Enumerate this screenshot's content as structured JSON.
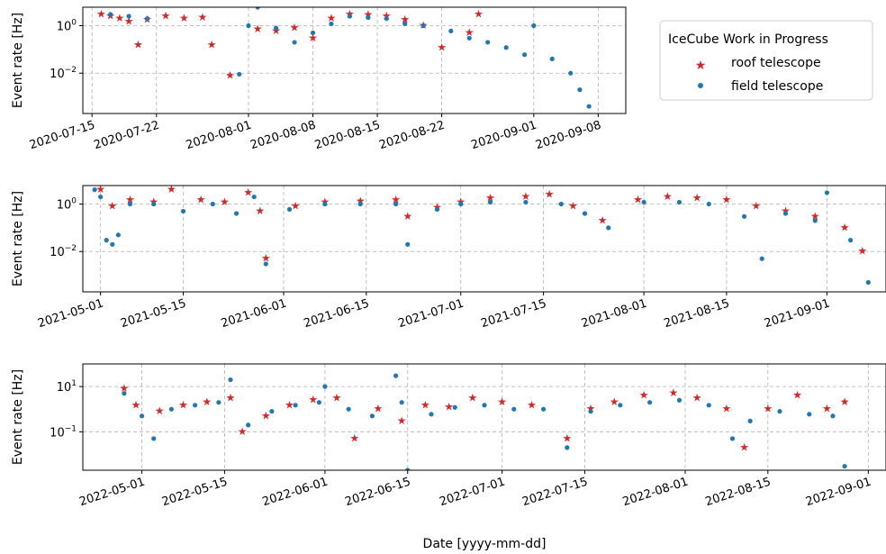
{
  "colors": {
    "roof": "#d62728",
    "field": "#1f77b4",
    "grid": "#b0b0b0"
  },
  "legend": {
    "title": "IceCube Work in Progress",
    "entries": [
      {
        "label": "roof telescope",
        "marker": "star",
        "color": "#d62728"
      },
      {
        "label": "field telescope",
        "marker": "dot",
        "color": "#1f77b4"
      }
    ]
  },
  "xlabel": "Date [yyyy-mm-dd]",
  "chart_data": [
    {
      "type": "scatter",
      "ylabel": "Event rate [Hz]",
      "yscale": "log",
      "ylim": [
        0.0002,
        6
      ],
      "xlim": [
        "2020-07-14",
        "2020-09-11"
      ],
      "yticks": [
        {
          "value": 1,
          "base": "10",
          "exp": "0"
        },
        {
          "value": 0.01,
          "base": "10",
          "exp": "−2"
        }
      ],
      "xticks": [
        "2020-07-15",
        "2020-07-22",
        "2020-08-01",
        "2020-08-08",
        "2020-08-15",
        "2020-08-22",
        "2020-09-01",
        "2020-09-08"
      ],
      "grid": true,
      "series": [
        {
          "name": "roof telescope",
          "marker": "star",
          "color": "#d62728",
          "points": [
            [
              "2020-07-16",
              3
            ],
            [
              "2020-07-17",
              2.5
            ],
            [
              "2020-07-18",
              2
            ],
            [
              "2020-07-19",
              1.5
            ],
            [
              "2020-07-20",
              0.15
            ],
            [
              "2020-07-21",
              1.8
            ],
            [
              "2020-07-23",
              2.5
            ],
            [
              "2020-07-25",
              2
            ],
            [
              "2020-07-27",
              2.2
            ],
            [
              "2020-07-28",
              0.15
            ],
            [
              "2020-07-30",
              0.008
            ],
            [
              "2020-08-02",
              0.7
            ],
            [
              "2020-08-04",
              0.6
            ],
            [
              "2020-08-06",
              0.8
            ],
            [
              "2020-08-08",
              0.3
            ],
            [
              "2020-08-10",
              2
            ],
            [
              "2020-08-12",
              3
            ],
            [
              "2020-08-14",
              2.8
            ],
            [
              "2020-08-16",
              2.5
            ],
            [
              "2020-08-18",
              1.8
            ],
            [
              "2020-08-20",
              1
            ],
            [
              "2020-08-22",
              0.12
            ],
            [
              "2020-08-25",
              0.5
            ],
            [
              "2020-08-26",
              3
            ]
          ]
        },
        {
          "name": "field telescope",
          "marker": "dot",
          "color": "#1f77b4",
          "points": [
            [
              "2020-07-17",
              3
            ],
            [
              "2020-07-19",
              2.5
            ],
            [
              "2020-07-21",
              2
            ],
            [
              "2020-07-31",
              0.009
            ],
            [
              "2020-08-01",
              1
            ],
            [
              "2020-08-02",
              6
            ],
            [
              "2020-08-04",
              0.8
            ],
            [
              "2020-08-06",
              0.2
            ],
            [
              "2020-08-08",
              0.5
            ],
            [
              "2020-08-10",
              1.2
            ],
            [
              "2020-08-12",
              2.5
            ],
            [
              "2020-08-14",
              2.2
            ],
            [
              "2020-08-16",
              2
            ],
            [
              "2020-08-18",
              1.2
            ],
            [
              "2020-08-20",
              1
            ],
            [
              "2020-08-23",
              0.6
            ],
            [
              "2020-08-25",
              0.3
            ],
            [
              "2020-08-27",
              0.2
            ],
            [
              "2020-08-29",
              0.12
            ],
            [
              "2020-08-31",
              0.06
            ],
            [
              "2020-09-01",
              1
            ],
            [
              "2020-09-03",
              0.04
            ],
            [
              "2020-09-05",
              0.01
            ],
            [
              "2020-09-06",
              0.002
            ],
            [
              "2020-09-07",
              0.0004
            ]
          ]
        }
      ]
    },
    {
      "type": "scatter",
      "ylabel": "Event rate [Hz]",
      "yscale": "log",
      "ylim": [
        0.0002,
        6
      ],
      "xlim": [
        "2021-04-28",
        "2021-09-11"
      ],
      "yticks": [
        {
          "value": 1,
          "base": "10",
          "exp": "0"
        },
        {
          "value": 0.01,
          "base": "10",
          "exp": "−2"
        }
      ],
      "xticks": [
        "2021-05-01",
        "2021-05-15",
        "2021-06-01",
        "2021-06-15",
        "2021-07-01",
        "2021-07-15",
        "2021-08-01",
        "2021-08-15",
        "2021-09-01"
      ],
      "grid": true,
      "series": [
        {
          "name": "roof telescope",
          "marker": "star",
          "color": "#d62728",
          "points": [
            [
              "2021-05-01",
              4
            ],
            [
              "2021-05-03",
              0.8
            ],
            [
              "2021-05-06",
              1.5
            ],
            [
              "2021-05-10",
              1.2
            ],
            [
              "2021-05-13",
              4
            ],
            [
              "2021-05-18",
              1.5
            ],
            [
              "2021-05-22",
              1.2
            ],
            [
              "2021-05-26",
              3
            ],
            [
              "2021-05-28",
              0.5
            ],
            [
              "2021-05-29",
              0.005
            ],
            [
              "2021-06-03",
              0.8
            ],
            [
              "2021-06-08",
              1.2
            ],
            [
              "2021-06-14",
              1.3
            ],
            [
              "2021-06-20",
              1.5
            ],
            [
              "2021-06-22",
              0.3
            ],
            [
              "2021-06-27",
              0.7
            ],
            [
              "2021-07-01",
              1.2
            ],
            [
              "2021-07-06",
              1.8
            ],
            [
              "2021-07-12",
              2
            ],
            [
              "2021-07-16",
              2.5
            ],
            [
              "2021-07-20",
              0.8
            ],
            [
              "2021-07-25",
              0.2
            ],
            [
              "2021-07-31",
              1.5
            ],
            [
              "2021-08-05",
              2
            ],
            [
              "2021-08-10",
              1.8
            ],
            [
              "2021-08-15",
              1.5
            ],
            [
              "2021-08-20",
              0.8
            ],
            [
              "2021-08-25",
              0.5
            ],
            [
              "2021-08-30",
              0.3
            ],
            [
              "2021-09-04",
              0.1
            ],
            [
              "2021-09-07",
              0.01
            ]
          ]
        },
        {
          "name": "field telescope",
          "marker": "dot",
          "color": "#1f77b4",
          "points": [
            [
              "2021-04-30",
              4
            ],
            [
              "2021-05-01",
              2
            ],
            [
              "2021-05-02",
              0.03
            ],
            [
              "2021-05-03",
              0.02
            ],
            [
              "2021-05-04",
              0.05
            ],
            [
              "2021-05-06",
              1
            ],
            [
              "2021-05-10",
              1
            ],
            [
              "2021-05-15",
              0.5
            ],
            [
              "2021-05-20",
              1
            ],
            [
              "2021-05-24",
              0.4
            ],
            [
              "2021-05-27",
              2
            ],
            [
              "2021-05-29",
              0.003
            ],
            [
              "2021-06-02",
              0.6
            ],
            [
              "2021-06-08",
              1
            ],
            [
              "2021-06-14",
              1
            ],
            [
              "2021-06-20",
              1
            ],
            [
              "2021-06-22",
              0.02
            ],
            [
              "2021-06-27",
              0.6
            ],
            [
              "2021-07-01",
              1
            ],
            [
              "2021-07-06",
              1.2
            ],
            [
              "2021-07-12",
              1.2
            ],
            [
              "2021-07-18",
              1
            ],
            [
              "2021-07-22",
              0.4
            ],
            [
              "2021-07-26",
              0.1
            ],
            [
              "2021-08-01",
              1.2
            ],
            [
              "2021-08-07",
              1.2
            ],
            [
              "2021-08-12",
              1
            ],
            [
              "2021-08-18",
              0.3
            ],
            [
              "2021-08-21",
              0.005
            ],
            [
              "2021-08-25",
              0.4
            ],
            [
              "2021-08-30",
              0.2
            ],
            [
              "2021-09-01",
              3
            ],
            [
              "2021-09-05",
              0.03
            ],
            [
              "2021-09-08",
              0.0005
            ]
          ]
        }
      ]
    },
    {
      "type": "scatter",
      "ylabel": "Event rate [Hz]",
      "yscale": "log",
      "ylim": [
        0.002,
        100
      ],
      "xlim": [
        "2022-04-21",
        "2022-09-04"
      ],
      "yticks": [
        {
          "value": 10,
          "base": "10",
          "exp": "1"
        },
        {
          "value": 0.1,
          "base": "10",
          "exp": "−1"
        }
      ],
      "xticks": [
        "2022-05-01",
        "2022-05-15",
        "2022-06-01",
        "2022-06-15",
        "2022-07-01",
        "2022-07-15",
        "2022-08-01",
        "2022-08-15",
        "2022-09-01"
      ],
      "grid": true,
      "series": [
        {
          "name": "roof telescope",
          "marker": "star",
          "color": "#d62728",
          "points": [
            [
              "2022-04-28",
              8
            ],
            [
              "2022-04-30",
              1.5
            ],
            [
              "2022-05-04",
              0.8
            ],
            [
              "2022-05-08",
              1.5
            ],
            [
              "2022-05-12",
              2
            ],
            [
              "2022-05-16",
              3
            ],
            [
              "2022-05-18",
              0.1
            ],
            [
              "2022-05-22",
              0.5
            ],
            [
              "2022-05-26",
              1.5
            ],
            [
              "2022-05-30",
              2.5
            ],
            [
              "2022-06-03",
              3
            ],
            [
              "2022-06-06",
              0.05
            ],
            [
              "2022-06-10",
              1
            ],
            [
              "2022-06-14",
              0.3
            ],
            [
              "2022-06-18",
              1.5
            ],
            [
              "2022-06-22",
              1.2
            ],
            [
              "2022-06-26",
              3
            ],
            [
              "2022-07-01",
              2
            ],
            [
              "2022-07-06",
              1.5
            ],
            [
              "2022-07-12",
              0.05
            ],
            [
              "2022-07-16",
              1
            ],
            [
              "2022-07-20",
              2
            ],
            [
              "2022-07-25",
              4
            ],
            [
              "2022-07-30",
              5
            ],
            [
              "2022-08-03",
              3
            ],
            [
              "2022-08-08",
              1
            ],
            [
              "2022-08-11",
              0.02
            ],
            [
              "2022-08-15",
              1
            ],
            [
              "2022-08-20",
              4
            ],
            [
              "2022-08-25",
              1
            ],
            [
              "2022-08-28",
              2
            ]
          ]
        },
        {
          "name": "field telescope",
          "marker": "dot",
          "color": "#1f77b4",
          "points": [
            [
              "2022-04-28",
              5
            ],
            [
              "2022-05-01",
              0.5
            ],
            [
              "2022-05-03",
              0.05
            ],
            [
              "2022-05-06",
              1
            ],
            [
              "2022-05-10",
              1.5
            ],
            [
              "2022-05-14",
              2
            ],
            [
              "2022-05-16",
              20
            ],
            [
              "2022-05-19",
              0.2
            ],
            [
              "2022-05-23",
              0.8
            ],
            [
              "2022-05-27",
              1.5
            ],
            [
              "2022-05-31",
              2
            ],
            [
              "2022-06-01",
              10
            ],
            [
              "2022-06-05",
              1
            ],
            [
              "2022-06-09",
              0.5
            ],
            [
              "2022-06-13",
              30
            ],
            [
              "2022-06-14",
              2
            ],
            [
              "2022-06-15",
              0.002
            ],
            [
              "2022-06-19",
              0.6
            ],
            [
              "2022-06-23",
              1.2
            ],
            [
              "2022-06-28",
              1.5
            ],
            [
              "2022-07-03",
              1
            ],
            [
              "2022-07-08",
              1
            ],
            [
              "2022-07-12",
              0.02
            ],
            [
              "2022-07-16",
              0.8
            ],
            [
              "2022-07-21",
              1.5
            ],
            [
              "2022-07-26",
              2
            ],
            [
              "2022-07-31",
              2.5
            ],
            [
              "2022-08-05",
              1.5
            ],
            [
              "2022-08-09",
              0.05
            ],
            [
              "2022-08-12",
              0.3
            ],
            [
              "2022-08-17",
              0.8
            ],
            [
              "2022-08-22",
              0.6
            ],
            [
              "2022-08-26",
              0.5
            ],
            [
              "2022-08-28",
              0.003
            ]
          ]
        }
      ]
    }
  ]
}
